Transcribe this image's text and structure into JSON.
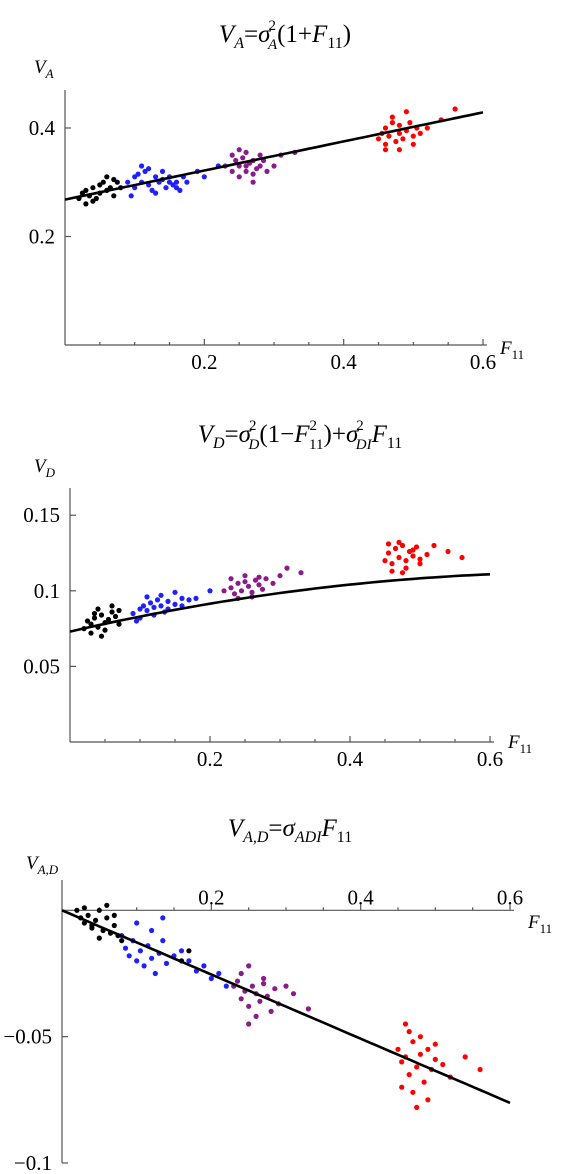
{
  "chart_data": [
    {
      "type": "scatter",
      "title": "V_A=σ_A^2(1+F_11)",
      "xlabel": "F_11",
      "ylabel": "V_A",
      "xlim": [
        0,
        0.6
      ],
      "ylim": [
        0,
        0.47
      ],
      "xticks": [
        0.2,
        0.4,
        0.6
      ],
      "xtick_labels": [
        "0.2",
        "0.4",
        "0.6"
      ],
      "yticks": [
        0.2,
        0.4
      ],
      "ytick_labels": [
        "0.2",
        "0.4"
      ],
      "fit_line": {
        "formula": "0.268*(1+x)",
        "x": [
          0.0,
          0.6
        ]
      },
      "series": [
        {
          "color": "#000000",
          "x": [
            0.02,
            0.025,
            0.03,
            0.03,
            0.035,
            0.04,
            0.045,
            0.05,
            0.05,
            0.055,
            0.06,
            0.065,
            0.07,
            0.07,
            0.08,
            0.04,
            0.06,
            0.075
          ],
          "y": [
            0.27,
            0.28,
            0.26,
            0.285,
            0.275,
            0.29,
            0.27,
            0.295,
            0.28,
            0.3,
            0.285,
            0.29,
            0.305,
            0.275,
            0.29,
            0.265,
            0.31,
            0.3
          ]
        },
        {
          "color": "#1f1fff",
          "x": [
            0.09,
            0.1,
            0.1,
            0.11,
            0.115,
            0.12,
            0.125,
            0.13,
            0.135,
            0.14,
            0.145,
            0.15,
            0.155,
            0.16,
            0.165,
            0.17,
            0.11,
            0.12,
            0.13,
            0.14,
            0.15,
            0.16,
            0.095,
            0.105,
            0.175,
            0.19,
            0.2,
            0.22
          ],
          "y": [
            0.3,
            0.29,
            0.31,
            0.3,
            0.32,
            0.295,
            0.285,
            0.31,
            0.3,
            0.305,
            0.29,
            0.31,
            0.295,
            0.3,
            0.285,
            0.31,
            0.33,
            0.325,
            0.28,
            0.32,
            0.3,
            0.29,
            0.275,
            0.315,
            0.3,
            0.32,
            0.31,
            0.33
          ]
        },
        {
          "color": "#8b1a8b",
          "x": [
            0.23,
            0.24,
            0.245,
            0.25,
            0.255,
            0.26,
            0.265,
            0.27,
            0.275,
            0.28,
            0.285,
            0.29,
            0.24,
            0.25,
            0.26,
            0.27,
            0.28,
            0.3,
            0.31,
            0.26,
            0.27,
            0.25,
            0.33
          ],
          "y": [
            0.33,
            0.32,
            0.34,
            0.33,
            0.345,
            0.32,
            0.335,
            0.34,
            0.325,
            0.33,
            0.34,
            0.32,
            0.35,
            0.31,
            0.355,
            0.315,
            0.35,
            0.33,
            0.35,
            0.33,
            0.3,
            0.36,
            0.355
          ]
        },
        {
          "color": "#ff0000",
          "x": [
            0.45,
            0.455,
            0.46,
            0.46,
            0.465,
            0.47,
            0.475,
            0.48,
            0.48,
            0.485,
            0.49,
            0.495,
            0.5,
            0.505,
            0.46,
            0.47,
            0.48,
            0.49,
            0.5,
            0.51,
            0.52,
            0.54,
            0.56
          ],
          "y": [
            0.38,
            0.39,
            0.37,
            0.4,
            0.385,
            0.41,
            0.375,
            0.39,
            0.405,
            0.38,
            0.395,
            0.41,
            0.385,
            0.4,
            0.36,
            0.42,
            0.36,
            0.43,
            0.37,
            0.39,
            0.4,
            0.415,
            0.435
          ]
        }
      ]
    },
    {
      "type": "scatter",
      "title": "V_D=σ_D^2(1−F_11^2)+σ_DI^2 F_11",
      "xlabel": "F_11",
      "ylabel": "V_D",
      "xlim": [
        0,
        0.6
      ],
      "ylim": [
        0,
        0.168
      ],
      "xticks": [
        0.2,
        0.4,
        0.6
      ],
      "xtick_labels": [
        "0.2",
        "0.4",
        "0.6"
      ],
      "yticks": [
        0.05,
        0.1,
        0.15
      ],
      "ytick_labels": [
        "0.05",
        "0.1",
        "0.15"
      ],
      "fit_line": {
        "formula": "0.073*(1-x^2)+0.107*x",
        "x": [
          0.0,
          0.6
        ]
      },
      "series": [
        {
          "color": "#000000",
          "x": [
            0.02,
            0.025,
            0.03,
            0.035,
            0.04,
            0.045,
            0.05,
            0.055,
            0.06,
            0.065,
            0.07,
            0.03,
            0.04,
            0.05,
            0.06,
            0.07,
            0.035,
            0.045
          ],
          "y": [
            0.075,
            0.08,
            0.078,
            0.082,
            0.076,
            0.084,
            0.079,
            0.081,
            0.086,
            0.083,
            0.087,
            0.072,
            0.088,
            0.074,
            0.09,
            0.078,
            0.085,
            0.07
          ]
        },
        {
          "color": "#1f1fff",
          "x": [
            0.09,
            0.1,
            0.105,
            0.11,
            0.115,
            0.12,
            0.125,
            0.13,
            0.14,
            0.15,
            0.16,
            0.17,
            0.1,
            0.11,
            0.12,
            0.13,
            0.14,
            0.15,
            0.16,
            0.18,
            0.2,
            0.095,
            0.135
          ],
          "y": [
            0.085,
            0.088,
            0.09,
            0.087,
            0.092,
            0.089,
            0.094,
            0.09,
            0.093,
            0.091,
            0.095,
            0.094,
            0.082,
            0.096,
            0.084,
            0.097,
            0.088,
            0.099,
            0.09,
            0.095,
            0.1,
            0.08,
            0.086
          ]
        },
        {
          "color": "#8b1a8b",
          "x": [
            0.22,
            0.23,
            0.235,
            0.24,
            0.245,
            0.25,
            0.255,
            0.26,
            0.265,
            0.27,
            0.275,
            0.28,
            0.29,
            0.24,
            0.25,
            0.26,
            0.27,
            0.3,
            0.31,
            0.33,
            0.23
          ],
          "y": [
            0.1,
            0.102,
            0.098,
            0.105,
            0.1,
            0.106,
            0.103,
            0.099,
            0.107,
            0.104,
            0.101,
            0.108,
            0.105,
            0.095,
            0.11,
            0.096,
            0.109,
            0.11,
            0.115,
            0.112,
            0.108
          ]
        },
        {
          "color": "#ff0000",
          "x": [
            0.45,
            0.455,
            0.46,
            0.465,
            0.47,
            0.475,
            0.48,
            0.485,
            0.49,
            0.495,
            0.5,
            0.46,
            0.47,
            0.48,
            0.49,
            0.5,
            0.51,
            0.52,
            0.54,
            0.56,
            0.455,
            0.475
          ],
          "y": [
            0.12,
            0.125,
            0.118,
            0.128,
            0.122,
            0.13,
            0.12,
            0.126,
            0.123,
            0.129,
            0.121,
            0.113,
            0.132,
            0.115,
            0.127,
            0.118,
            0.124,
            0.13,
            0.126,
            0.122,
            0.131,
            0.112
          ]
        }
      ]
    },
    {
      "type": "scatter",
      "title": "V_A,D=σ_ADI F_11",
      "xlabel": "F_11",
      "ylabel": "V_A,D",
      "xlim": [
        0,
        0.6
      ],
      "ylim": [
        -0.1,
        0.012
      ],
      "xticks": [
        0.2,
        0.4,
        0.6
      ],
      "xtick_labels": [
        "0.2",
        "0.4",
        "0.6"
      ],
      "yticks": [
        -0.05,
        -0.1
      ],
      "ytick_labels": [
        "−0.05",
        "−0.1"
      ],
      "fit_line": {
        "formula": "-0.127*x",
        "x": [
          0.0,
          0.6
        ]
      },
      "series": [
        {
          "color": "#000000",
          "x": [
            0.02,
            0.025,
            0.03,
            0.035,
            0.04,
            0.045,
            0.05,
            0.055,
            0.06,
            0.065,
            0.07,
            0.075,
            0.03,
            0.04,
            0.05,
            0.06,
            0.07,
            0.08,
            0.16,
            0.17
          ],
          "y": [
            0.0,
            -0.003,
            -0.005,
            -0.002,
            -0.006,
            -0.004,
            0.0,
            -0.008,
            -0.003,
            -0.009,
            -0.002,
            -0.01,
            0.001,
            -0.007,
            -0.011,
            0.002,
            -0.006,
            -0.012,
            -0.02,
            -0.016
          ]
        },
        {
          "color": "#1f1fff",
          "x": [
            0.08,
            0.085,
            0.09,
            0.095,
            0.1,
            0.105,
            0.11,
            0.115,
            0.12,
            0.125,
            0.13,
            0.135,
            0.14,
            0.15,
            0.16,
            0.17,
            0.18,
            0.19,
            0.2,
            0.21,
            0.22,
            0.1,
            0.12,
            0.135
          ],
          "y": [
            -0.01,
            -0.015,
            -0.018,
            -0.012,
            -0.02,
            -0.016,
            -0.022,
            -0.014,
            -0.019,
            -0.025,
            -0.017,
            -0.012,
            -0.021,
            -0.018,
            -0.016,
            -0.02,
            -0.024,
            -0.022,
            -0.027,
            -0.025,
            -0.03,
            -0.005,
            -0.008,
            -0.003
          ]
        },
        {
          "color": "#8b1a8b",
          "x": [
            0.23,
            0.235,
            0.24,
            0.245,
            0.25,
            0.255,
            0.26,
            0.265,
            0.27,
            0.275,
            0.28,
            0.285,
            0.29,
            0.24,
            0.25,
            0.26,
            0.27,
            0.3,
            0.31,
            0.33,
            0.25
          ],
          "y": [
            -0.03,
            -0.028,
            -0.035,
            -0.032,
            -0.038,
            -0.03,
            -0.033,
            -0.036,
            -0.029,
            -0.034,
            -0.04,
            -0.031,
            -0.037,
            -0.025,
            -0.022,
            -0.042,
            -0.027,
            -0.03,
            -0.033,
            -0.039,
            -0.045
          ]
        },
        {
          "color": "#ff0000",
          "x": [
            0.45,
            0.455,
            0.46,
            0.465,
            0.47,
            0.475,
            0.48,
            0.485,
            0.49,
            0.495,
            0.5,
            0.46,
            0.47,
            0.48,
            0.49,
            0.5,
            0.51,
            0.52,
            0.54,
            0.56,
            0.455,
            0.465,
            0.475
          ],
          "y": [
            -0.055,
            -0.06,
            -0.058,
            -0.065,
            -0.052,
            -0.062,
            -0.057,
            -0.068,
            -0.055,
            -0.063,
            -0.059,
            -0.045,
            -0.072,
            -0.05,
            -0.075,
            -0.053,
            -0.061,
            -0.066,
            -0.058,
            -0.063,
            -0.07,
            -0.048,
            -0.078
          ]
        }
      ]
    }
  ]
}
